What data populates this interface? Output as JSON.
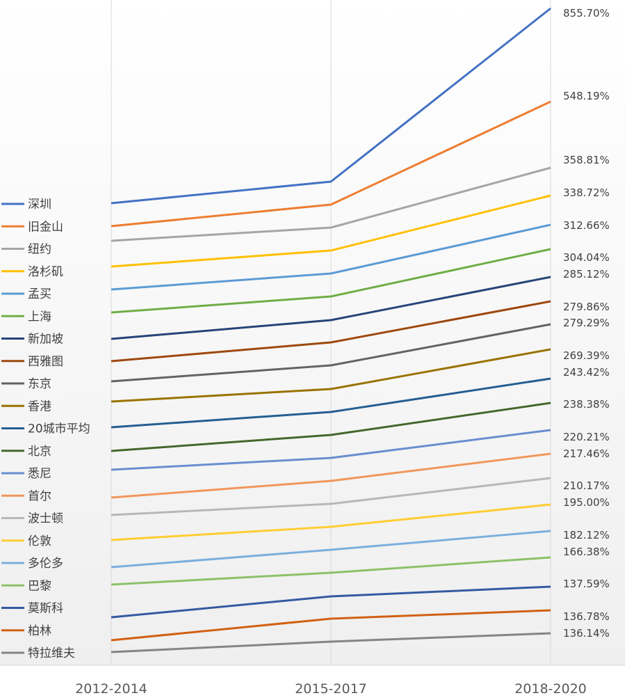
{
  "chart_data": {
    "type": "line",
    "title": "",
    "xlabel": "",
    "ylabel": "",
    "ylim": [
      0,
      955
    ],
    "grid": "vertical",
    "legend": "left",
    "categories": [
      "2012-2014",
      "2015-2017",
      "2018-2020"
    ],
    "series": [
      {
        "name": "深圳",
        "color": "#4472C4",
        "values": [
          663,
          694,
          943
        ],
        "end_label": "855.70%"
      },
      {
        "name": "旧金山",
        "color": "#ED7D31",
        "values": [
          630,
          661,
          809
        ],
        "end_label": "548.19%"
      },
      {
        "name": "纽约",
        "color": "#A5A5A5",
        "values": [
          609,
          628,
          714
        ],
        "end_label": "358.81%"
      },
      {
        "name": "洛杉矶",
        "color": "#FFC000",
        "values": [
          572,
          595,
          674
        ],
        "end_label": "338.72%"
      },
      {
        "name": "孟买",
        "color": "#5B9BD5",
        "values": [
          539,
          562,
          632
        ],
        "end_label": "312.66%"
      },
      {
        "name": "上海",
        "color": "#70AD47",
        "values": [
          506,
          529,
          597
        ],
        "end_label": "304.04%"
      },
      {
        "name": "新加坡",
        "color": "#264478",
        "values": [
          468,
          495,
          557
        ],
        "end_label": "285.12%"
      },
      {
        "name": "西雅图",
        "color": "#9E480E",
        "values": [
          436,
          463,
          522
        ],
        "end_label": "279.86%"
      },
      {
        "name": "东京",
        "color": "#636363",
        "values": [
          407,
          430,
          489
        ],
        "end_label": "279.29%"
      },
      {
        "name": "香港",
        "color": "#997300",
        "values": [
          378,
          396,
          453
        ],
        "end_label": "269.39%"
      },
      {
        "name": "20城市平均",
        "color": "#255E91",
        "values": [
          341,
          363,
          411
        ],
        "end_label": "243.42%"
      },
      {
        "name": "北京",
        "color": "#43682B",
        "values": [
          307,
          330,
          376
        ],
        "end_label": "238.38%"
      },
      {
        "name": "悉尼",
        "color": "#698ED0",
        "values": [
          280,
          297,
          337
        ],
        "end_label": "220.21%"
      },
      {
        "name": "首尔",
        "color": "#F1975A",
        "values": [
          240,
          264,
          303
        ],
        "end_label": "217.46%"
      },
      {
        "name": "波士顿",
        "color": "#B7B7B7",
        "values": [
          215,
          231,
          268
        ],
        "end_label": "210.17%"
      },
      {
        "name": "伦敦",
        "color": "#FFCD33",
        "values": [
          179,
          198,
          230
        ],
        "end_label": "195.00%"
      },
      {
        "name": "多伦多",
        "color": "#7CAFDD",
        "values": [
          140,
          165,
          192
        ],
        "end_label": "182.12%"
      },
      {
        "name": "巴黎",
        "color": "#8CC168",
        "values": [
          115,
          132,
          154
        ],
        "end_label": "166.38%"
      },
      {
        "name": "莫斯科",
        "color": "#335AA1",
        "values": [
          68,
          98,
          112
        ],
        "end_label": "137.59%"
      },
      {
        "name": "柏林",
        "color": "#D26012",
        "values": [
          35,
          66,
          78
        ],
        "end_label": "136.78%"
      },
      {
        "name": "特拉维夫",
        "color": "#848484",
        "values": [
          18,
          33,
          45
        ],
        "end_label": "136.14%"
      }
    ]
  }
}
